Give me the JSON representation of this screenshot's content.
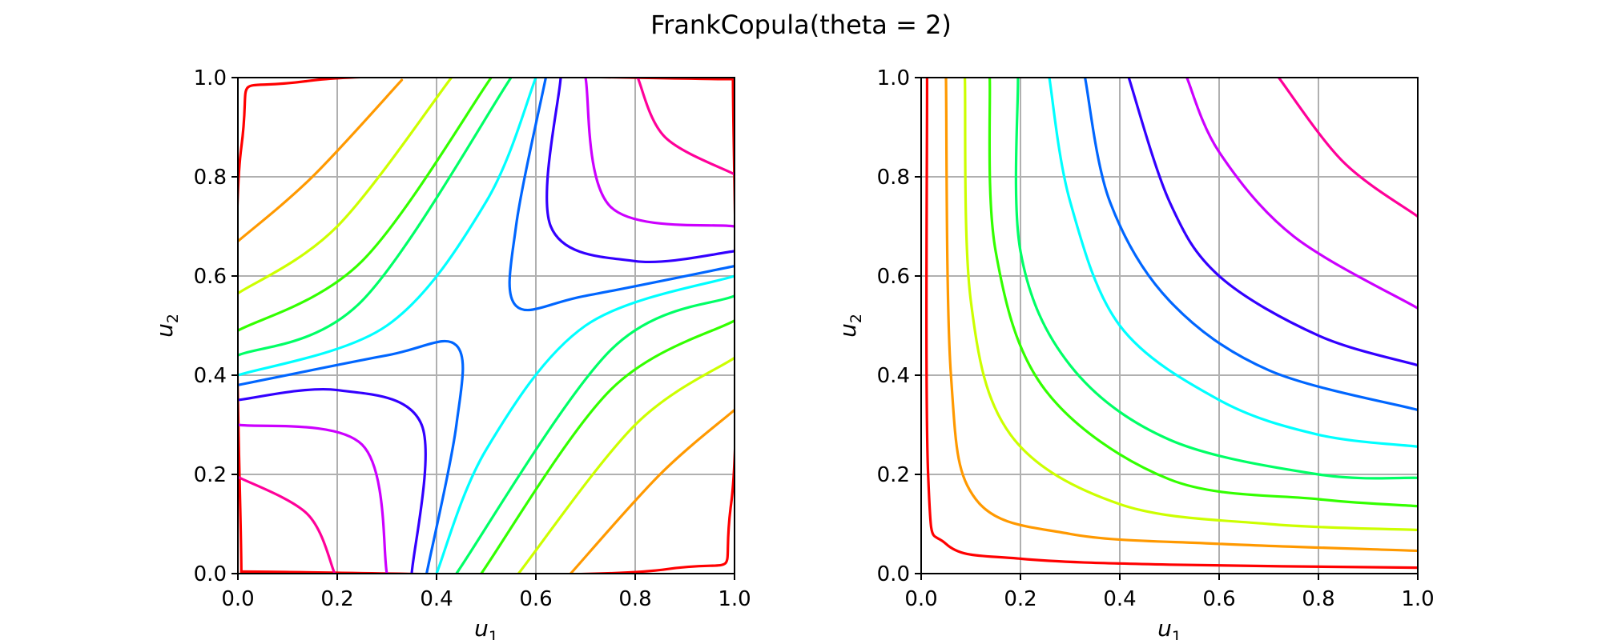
{
  "figure": {
    "title": "FrankCopula(theta = 2)"
  },
  "chart_data": [
    {
      "type": "contour",
      "panel": "left",
      "xlabel": "u",
      "xlabel_sub": "1",
      "ylabel": "u",
      "ylabel_sub": "2",
      "xlim": [
        0.0,
        1.0
      ],
      "ylim": [
        0.0,
        1.0
      ],
      "xticks": [
        "0.0",
        "0.2",
        "0.4",
        "0.6",
        "0.8",
        "1.0"
      ],
      "yticks": [
        "0.0",
        "0.2",
        "0.4",
        "0.6",
        "0.8",
        "1.0"
      ],
      "grid": true,
      "levels_colors": [
        "#ff0000",
        "#ff9900",
        "#ccff00",
        "#33ff00",
        "#00ff66",
        "#00ffff",
        "#0066ff",
        "#3300ff",
        "#cc00ff",
        "#ff0099"
      ],
      "contours": [
        {
          "color": "#ff0000",
          "segments": [
            [
              [
                0.007,
                0.004
              ],
              [
                0.864,
                0.009
              ],
              [
                0.993,
                0.14
              ],
              [
                0.997,
                1.0
              ]
            ],
            [
              [
                0.007,
                0.0
              ],
              [
                0.007,
                0.86
              ],
              [
                0.14,
                0.993
              ],
              [
                1.0,
                0.997
              ]
            ]
          ]
        },
        {
          "color": "#ff9900",
          "segments": [
            [
              [
                0.0,
                0.67
              ],
              [
                0.15,
                0.8
              ],
              [
                0.33,
                0.995
              ]
            ],
            [
              [
                0.67,
                0.0
              ],
              [
                0.85,
                0.2
              ],
              [
                1.0,
                0.33
              ]
            ]
          ]
        },
        {
          "color": "#ccff00",
          "segments": [
            [
              [
                0.0,
                0.565
              ],
              [
                0.2,
                0.7
              ],
              [
                0.43,
                1.0
              ]
            ],
            [
              [
                0.565,
                0.0
              ],
              [
                0.8,
                0.3
              ],
              [
                1.0,
                0.435
              ]
            ]
          ]
        },
        {
          "color": "#33ff00",
          "segments": [
            [
              [
                0.0,
                0.49
              ],
              [
                0.25,
                0.63
              ],
              [
                0.51,
                1.0
              ]
            ],
            [
              [
                0.49,
                0.0
              ],
              [
                0.75,
                0.37
              ],
              [
                1.0,
                0.51
              ]
            ]
          ]
        },
        {
          "color": "#00ff66",
          "segments": [
            [
              [
                0.0,
                0.44
              ],
              [
                0.25,
                0.55
              ],
              [
                0.55,
                1.0
              ]
            ],
            [
              [
                0.44,
                0.0
              ],
              [
                0.75,
                0.45
              ],
              [
                1.0,
                0.56
              ]
            ]
          ]
        },
        {
          "color": "#00ffff",
          "segments": [
            [
              [
                0.0,
                0.4
              ],
              [
                0.3,
                0.5
              ],
              [
                0.5,
                0.75
              ],
              [
                0.6,
                1.0
              ]
            ],
            [
              [
                0.4,
                0.0
              ],
              [
                0.5,
                0.25
              ],
              [
                0.7,
                0.5
              ],
              [
                1.0,
                0.6
              ]
            ]
          ]
        },
        {
          "color": "#0066ff",
          "segments": [
            [
              [
                0.0,
                0.38
              ],
              [
                0.3,
                0.44
              ],
              [
                0.44,
                0.46
              ],
              [
                0.44,
                0.3
              ],
              [
                0.38,
                0.0
              ]
            ],
            [
              [
                0.62,
                1.0
              ],
              [
                0.56,
                0.7
              ],
              [
                0.56,
                0.54
              ],
              [
                0.7,
                0.56
              ],
              [
                1.0,
                0.62
              ]
            ]
          ]
        },
        {
          "color": "#3300ff",
          "segments": [
            [
              [
                0.0,
                0.35
              ],
              [
                0.2,
                0.37
              ],
              [
                0.37,
                0.3
              ],
              [
                0.35,
                0.0
              ]
            ],
            [
              [
                0.65,
                1.0
              ],
              [
                0.63,
                0.7
              ],
              [
                0.8,
                0.63
              ],
              [
                1.0,
                0.65
              ]
            ]
          ]
        },
        {
          "color": "#cc00ff",
          "segments": [
            [
              [
                0.0,
                0.3
              ],
              [
                0.25,
                0.26
              ],
              [
                0.3,
                0.0
              ]
            ],
            [
              [
                0.7,
                1.0
              ],
              [
                0.75,
                0.74
              ],
              [
                1.0,
                0.7
              ]
            ]
          ]
        },
        {
          "color": "#ff0099",
          "segments": [
            [
              [
                0.0,
                0.195
              ],
              [
                0.14,
                0.12
              ],
              [
                0.195,
                0.0
              ]
            ],
            [
              [
                0.805,
                1.0
              ],
              [
                0.86,
                0.88
              ],
              [
                1.0,
                0.805
              ]
            ]
          ]
        }
      ]
    },
    {
      "type": "contour",
      "panel": "right",
      "xlabel": "u",
      "xlabel_sub": "1",
      "ylabel": "u",
      "ylabel_sub": "2",
      "xlim": [
        0.0,
        1.0
      ],
      "ylim": [
        0.0,
        1.0
      ],
      "xticks": [
        "0.0",
        "0.2",
        "0.4",
        "0.6",
        "0.8",
        "1.0"
      ],
      "yticks": [
        "0.0",
        "0.2",
        "0.4",
        "0.6",
        "0.8",
        "1.0"
      ],
      "grid": true,
      "contours": [
        {
          "color": "#ff0000",
          "segments": [
            [
              [
                0.012,
                1.0
              ],
              [
                0.014,
                0.2
              ],
              [
                0.05,
                0.06
              ],
              [
                0.2,
                0.03
              ],
              [
                0.5,
                0.018
              ],
              [
                1.0,
                0.012
              ]
            ]
          ]
        },
        {
          "color": "#ff9900",
          "segments": [
            [
              [
                0.05,
                1.0
              ],
              [
                0.06,
                0.4
              ],
              [
                0.11,
                0.15
              ],
              [
                0.3,
                0.08
              ],
              [
                0.6,
                0.06
              ],
              [
                1.0,
                0.046
              ]
            ]
          ]
        },
        {
          "color": "#ccff00",
          "segments": [
            [
              [
                0.088,
                1.0
              ],
              [
                0.1,
                0.55
              ],
              [
                0.18,
                0.28
              ],
              [
                0.4,
                0.14
              ],
              [
                0.7,
                0.1
              ],
              [
                1.0,
                0.088
              ]
            ]
          ]
        },
        {
          "color": "#33ff00",
          "segments": [
            [
              [
                0.138,
                1.0
              ],
              [
                0.15,
                0.65
              ],
              [
                0.25,
                0.37
              ],
              [
                0.5,
                0.19
              ],
              [
                0.8,
                0.15
              ],
              [
                1.0,
                0.136
              ]
            ]
          ]
        },
        {
          "color": "#00ff66",
          "segments": [
            [
              [
                0.195,
                1.0
              ],
              [
                0.2,
                0.65
              ],
              [
                0.3,
                0.42
              ],
              [
                0.5,
                0.27
              ],
              [
                0.8,
                0.2
              ],
              [
                1.0,
                0.193
              ]
            ]
          ]
        },
        {
          "color": "#00ffff",
          "segments": [
            [
              [
                0.258,
                1.0
              ],
              [
                0.3,
                0.75
              ],
              [
                0.4,
                0.5
              ],
              [
                0.6,
                0.35
              ],
              [
                0.8,
                0.28
              ],
              [
                1.0,
                0.256
              ]
            ]
          ]
        },
        {
          "color": "#0066ff",
          "segments": [
            [
              [
                0.33,
                1.0
              ],
              [
                0.38,
                0.75
              ],
              [
                0.5,
                0.55
              ],
              [
                0.7,
                0.41
              ],
              [
                1.0,
                0.33
              ]
            ]
          ]
        },
        {
          "color": "#3300ff",
          "segments": [
            [
              [
                0.418,
                1.0
              ],
              [
                0.5,
                0.75
              ],
              [
                0.6,
                0.6
              ],
              [
                0.8,
                0.48
              ],
              [
                1.0,
                0.42
              ]
            ]
          ]
        },
        {
          "color": "#cc00ff",
          "segments": [
            [
              [
                0.535,
                1.0
              ],
              [
                0.6,
                0.85
              ],
              [
                0.75,
                0.68
              ],
              [
                1.0,
                0.535
              ]
            ]
          ]
        },
        {
          "color": "#ff0099",
          "segments": [
            [
              [
                0.72,
                1.0
              ],
              [
                0.85,
                0.83
              ],
              [
                1.0,
                0.72
              ]
            ]
          ]
        }
      ]
    }
  ]
}
